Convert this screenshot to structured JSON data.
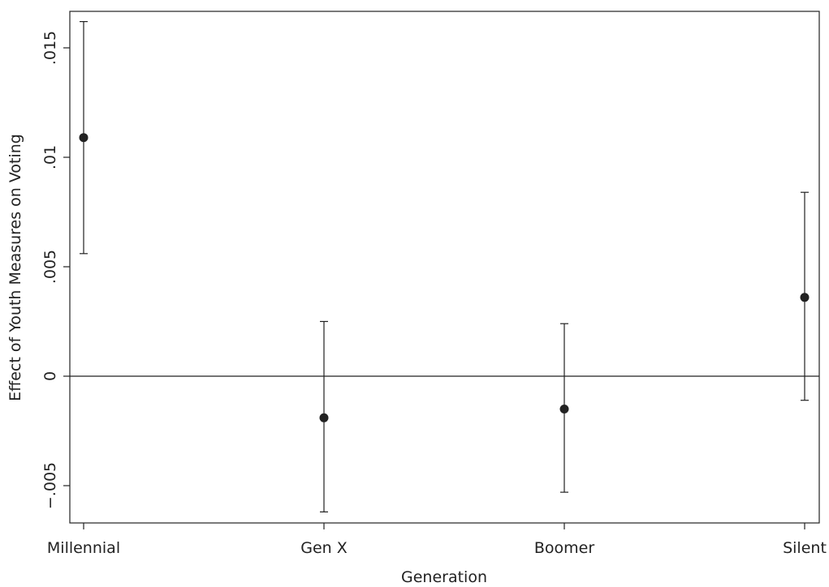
{
  "chart_data": {
    "type": "scatter",
    "title": "",
    "xlabel": "Generation",
    "ylabel": "Effect of Youth Measures on Voting",
    "categories": [
      "Millennial",
      "Gen X",
      "Boomer",
      "Silent"
    ],
    "points": [
      {
        "category": "Millennial",
        "estimate": 0.0109,
        "ci_low": 0.0056,
        "ci_high": 0.0162
      },
      {
        "category": "Gen X",
        "estimate": -0.0019,
        "ci_low": -0.0062,
        "ci_high": 0.0025
      },
      {
        "category": "Boomer",
        "estimate": -0.0015,
        "ci_low": -0.0053,
        "ci_high": 0.0024
      },
      {
        "category": "Silent",
        "estimate": 0.0036,
        "ci_low": -0.0011,
        "ci_high": 0.0084
      }
    ],
    "yticks": [
      -0.005,
      0,
      0.005,
      0.01,
      0.015
    ],
    "ytick_labels": [
      "−.005",
      "0",
      ".005",
      ".01",
      ".015"
    ],
    "ylim": [
      -0.0068,
      0.0168
    ],
    "reference_line": 0,
    "grid": false,
    "legend": "none"
  }
}
